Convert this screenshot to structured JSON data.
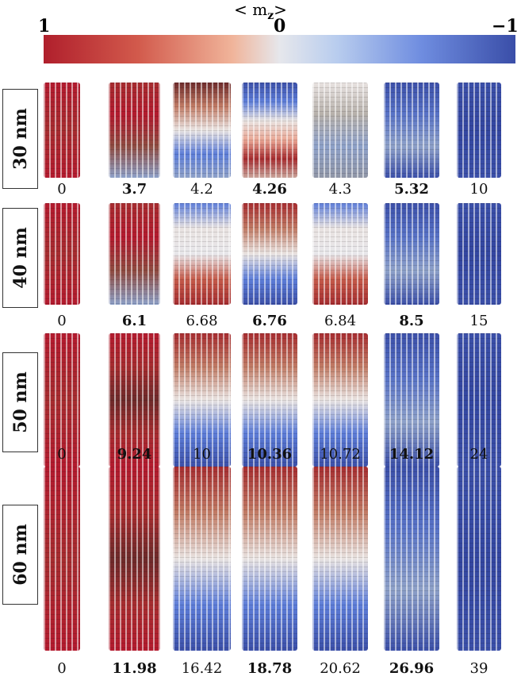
{
  "colorbar": {
    "title": "< m",
    "title_sub": "z",
    "title_end": ">",
    "min_label": "1",
    "mid_label": "0",
    "max_label": "−1",
    "colors": [
      "#b01f2c",
      "#d25a4c",
      "#f0b49a",
      "#e6e7ec",
      "#b9cdee",
      "#6f8de0",
      "#3a4ea8"
    ]
  },
  "rows": [
    {
      "label": "30 nm",
      "panels": [
        "red",
        "red-fade",
        "mixed-swirl-red-top",
        "blue-top-red-mid",
        "mixed-swirl",
        "blue-swirl",
        "blue"
      ],
      "values": [
        {
          "text": "0",
          "bold": false
        },
        {
          "text": "3.7",
          "bold": true
        },
        {
          "text": "4.2",
          "bold": false
        },
        {
          "text": "4.26",
          "bold": true
        },
        {
          "text": "4.3",
          "bold": false
        },
        {
          "text": "5.32",
          "bold": true
        },
        {
          "text": "10",
          "bold": false
        }
      ]
    },
    {
      "label": "40 nm",
      "panels": [
        "red",
        "red-fade",
        "blue-top-red-bottom",
        "red-top-blue-bottom",
        "blue-top-red-bottom",
        "blue-swirl",
        "blue"
      ],
      "values": [
        {
          "text": "0",
          "bold": false
        },
        {
          "text": "6.1",
          "bold": true
        },
        {
          "text": "6.68",
          "bold": false
        },
        {
          "text": "6.76",
          "bold": true
        },
        {
          "text": "6.84",
          "bold": false
        },
        {
          "text": "8.5",
          "bold": true
        },
        {
          "text": "15",
          "bold": false
        }
      ]
    },
    {
      "label": "50 nm",
      "panels": [
        "red",
        "red-dark-swirl",
        "red-top-blue-bottom",
        "red-top-blue-bottom",
        "red-top-blue-bottom",
        "blue-swirl",
        "blue"
      ],
      "values": [
        {
          "text": "0",
          "bold": false
        },
        {
          "text": "9.24",
          "bold": true
        },
        {
          "text": "10",
          "bold": false
        },
        {
          "text": "10.36",
          "bold": true
        },
        {
          "text": "10.72",
          "bold": false
        },
        {
          "text": "14.12",
          "bold": true
        },
        {
          "text": "24",
          "bold": false
        }
      ]
    },
    {
      "label": "60 nm",
      "panels": [
        "red",
        "red-dark-swirl",
        "red-top-blue-bottom",
        "red-top-blue-bottom",
        "red-top-blue-bottom",
        "blue-swirl",
        "blue"
      ],
      "values": [
        {
          "text": "0",
          "bold": false
        },
        {
          "text": "11.98",
          "bold": true
        },
        {
          "text": "16.42",
          "bold": false
        },
        {
          "text": "18.78",
          "bold": true
        },
        {
          "text": "20.62",
          "bold": false
        },
        {
          "text": "26.96",
          "bold": true
        },
        {
          "text": "39",
          "bold": false
        }
      ]
    }
  ]
}
